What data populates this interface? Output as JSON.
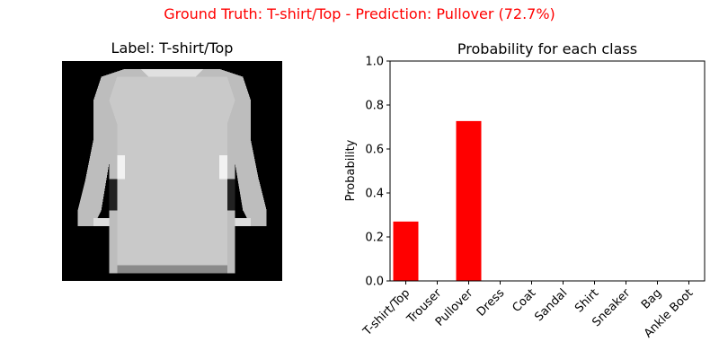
{
  "suptitle": "Ground Truth: T-shirt/Top - Prediction: Pullover (72.7%)",
  "image_panel": {
    "title": "Label: T-shirt/Top",
    "icon": "grayscale-shirt-image"
  },
  "colors": {
    "suptitle": "#ff0000",
    "bar": "#ff0000"
  },
  "chart_data": {
    "type": "bar",
    "title": "Probability for each class",
    "xlabel": "",
    "ylabel": "Probability",
    "categories": [
      "T-shirt/Top",
      "Trouser",
      "Pullover",
      "Dress",
      "Coat",
      "Sandal",
      "Shirt",
      "Sneaker",
      "Bag",
      "Ankle Boot"
    ],
    "values": [
      0.27,
      0.0,
      0.727,
      0.0,
      0.0,
      0.0,
      0.0,
      0.0,
      0.0,
      0.0
    ],
    "ylim": [
      0,
      1.0
    ],
    "yticks": [
      "0.0",
      "0.2",
      "0.4",
      "0.6",
      "0.8",
      "1.0"
    ],
    "grid": false,
    "legend": "none"
  }
}
